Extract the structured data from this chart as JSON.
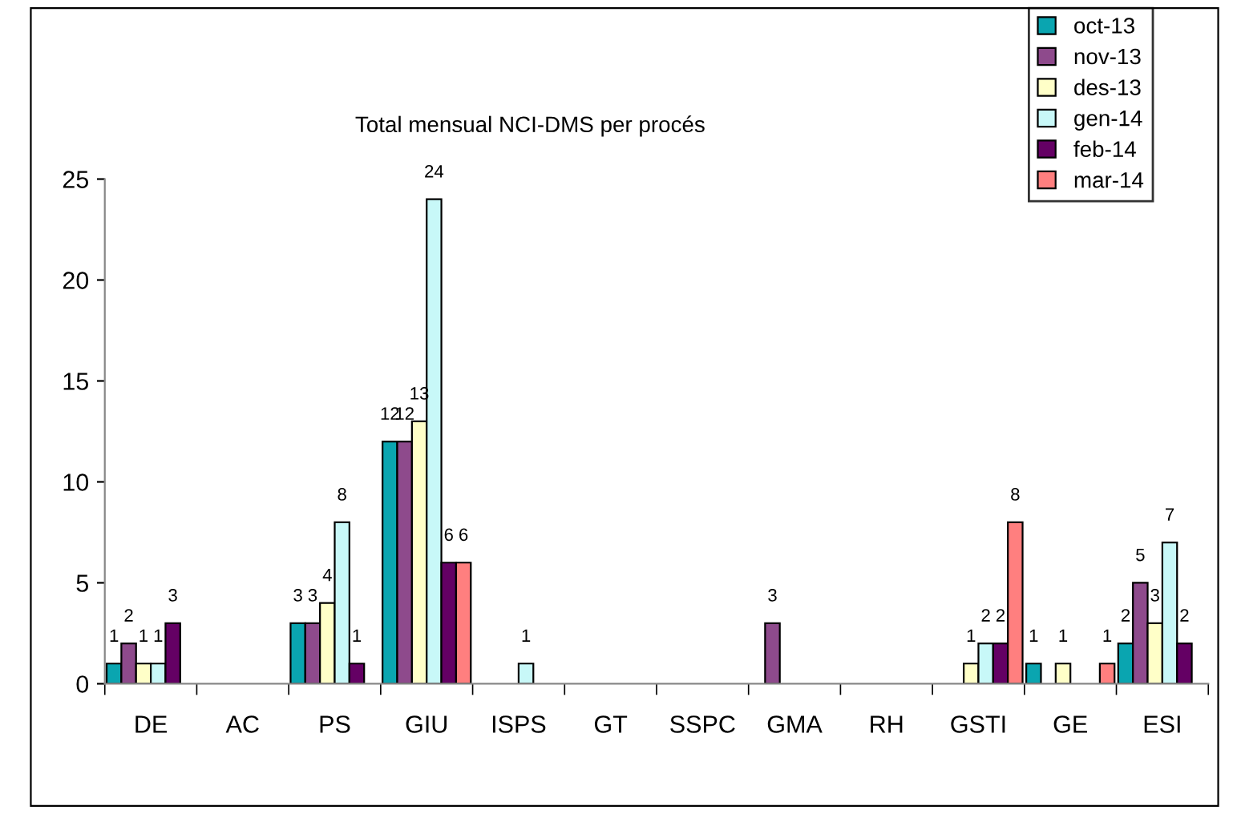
{
  "chart_data": {
    "type": "bar",
    "title": "Total mensual NCI-DMS per procés",
    "categories": [
      "DE",
      "AC",
      "PS",
      "GIU",
      "ISPS",
      "GT",
      "SSPC",
      "GMA",
      "RH",
      "GSTI",
      "GE",
      "ESI"
    ],
    "series": [
      {
        "name": "oct-13",
        "color": "#0aa5b0",
        "values": [
          1,
          null,
          3,
          12,
          null,
          null,
          null,
          null,
          null,
          null,
          1,
          2
        ]
      },
      {
        "name": "nov-13",
        "color": "#8e4a8c",
        "values": [
          2,
          null,
          3,
          12,
          null,
          null,
          null,
          3,
          null,
          null,
          null,
          5
        ]
      },
      {
        "name": "des-13",
        "color": "#ffffc8",
        "values": [
          1,
          null,
          4,
          13,
          null,
          null,
          null,
          null,
          null,
          1,
          1,
          3
        ]
      },
      {
        "name": "gen-14",
        "color": "#c8f8f8",
        "values": [
          1,
          null,
          8,
          24,
          1,
          null,
          null,
          null,
          null,
          2,
          null,
          7
        ]
      },
      {
        "name": "feb-14",
        "color": "#640064",
        "values": [
          3,
          null,
          1,
          6,
          null,
          null,
          null,
          null,
          null,
          2,
          null,
          2
        ]
      },
      {
        "name": "mar-14",
        "color": "#ff7f7f",
        "values": [
          null,
          null,
          null,
          6,
          null,
          null,
          null,
          null,
          null,
          8,
          1,
          null
        ]
      }
    ],
    "ylim": [
      0,
      25
    ],
    "yticks": [
      0,
      5,
      10,
      15,
      20,
      25
    ],
    "grid": false,
    "legend": "top right",
    "data_labels": true
  }
}
